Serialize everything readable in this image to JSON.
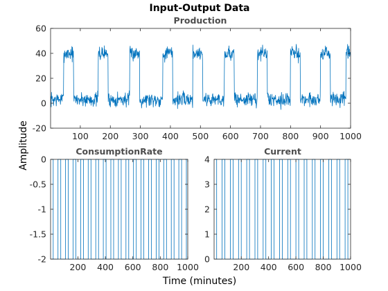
{
  "figure": {
    "suptitle": "Input-Output Data",
    "xlabel": "Time (minutes)",
    "ylabel": "Amplitude"
  },
  "colors": {
    "series": "#0072BD",
    "axes": "#262626",
    "title": "#4d4d4d"
  },
  "chart_data": [
    {
      "type": "line",
      "title": "Production",
      "xlabel": "",
      "ylabel": "",
      "xlim": [
        1,
        1000
      ],
      "ylim": [
        -20,
        60
      ],
      "xticks": [
        100,
        200,
        300,
        400,
        500,
        600,
        700,
        800,
        900,
        1000
      ],
      "yticks": [
        -20,
        0,
        20,
        40,
        60
      ],
      "grid": false,
      "series": [
        {
          "pattern": "square wave with noise, high during roughly the first third of each cycle",
          "period": 110,
          "high_level": 40,
          "low_level": 3,
          "rising_edges": [
            45,
            160,
            265,
            375,
            475,
            580,
            690,
            800,
            900,
            985
          ],
          "high_duration": 33,
          "noise_amplitude": 5,
          "x_start": 1,
          "x_end": 1000
        }
      ]
    },
    {
      "type": "line",
      "title": "ConsumptionRate",
      "xlabel": "",
      "ylabel": "",
      "xlim": [
        1,
        1000
      ],
      "ylim": [
        -2,
        0
      ],
      "xticks": [
        200,
        400,
        600,
        800,
        1000
      ],
      "yticks": [
        -2,
        -1.5,
        -1,
        -0.5,
        0
      ],
      "grid": false,
      "series": [
        {
          "pattern": "binary pulse train switching between 0 and -2",
          "high": 0,
          "low": -2,
          "switch_times": [
            20,
            55,
            75,
            110,
            130,
            165,
            185,
            220,
            240,
            275,
            295,
            330,
            350,
            385,
            405,
            440,
            460,
            495,
            515,
            550,
            570,
            605,
            625,
            660,
            680,
            715,
            735,
            770,
            790,
            825,
            845,
            880,
            900,
            935,
            955,
            990
          ]
        }
      ]
    },
    {
      "type": "line",
      "title": "Current",
      "xlabel": "",
      "ylabel": "",
      "xlim": [
        1,
        1000
      ],
      "ylim": [
        0,
        4
      ],
      "xticks": [
        200,
        400,
        600,
        800,
        1000
      ],
      "yticks": [
        0,
        1,
        2,
        3,
        4
      ],
      "grid": false,
      "series": [
        {
          "pattern": "binary pulse train switching between 0 and 4",
          "high": 4,
          "low": 0,
          "switch_times": [
            20,
            60,
            80,
            120,
            140,
            180,
            200,
            240,
            260,
            300,
            320,
            360,
            380,
            420,
            440,
            480,
            500,
            540,
            560,
            600,
            620,
            660,
            680,
            720,
            740,
            780,
            800,
            840,
            860,
            900,
            920,
            960,
            980
          ]
        }
      ]
    }
  ]
}
